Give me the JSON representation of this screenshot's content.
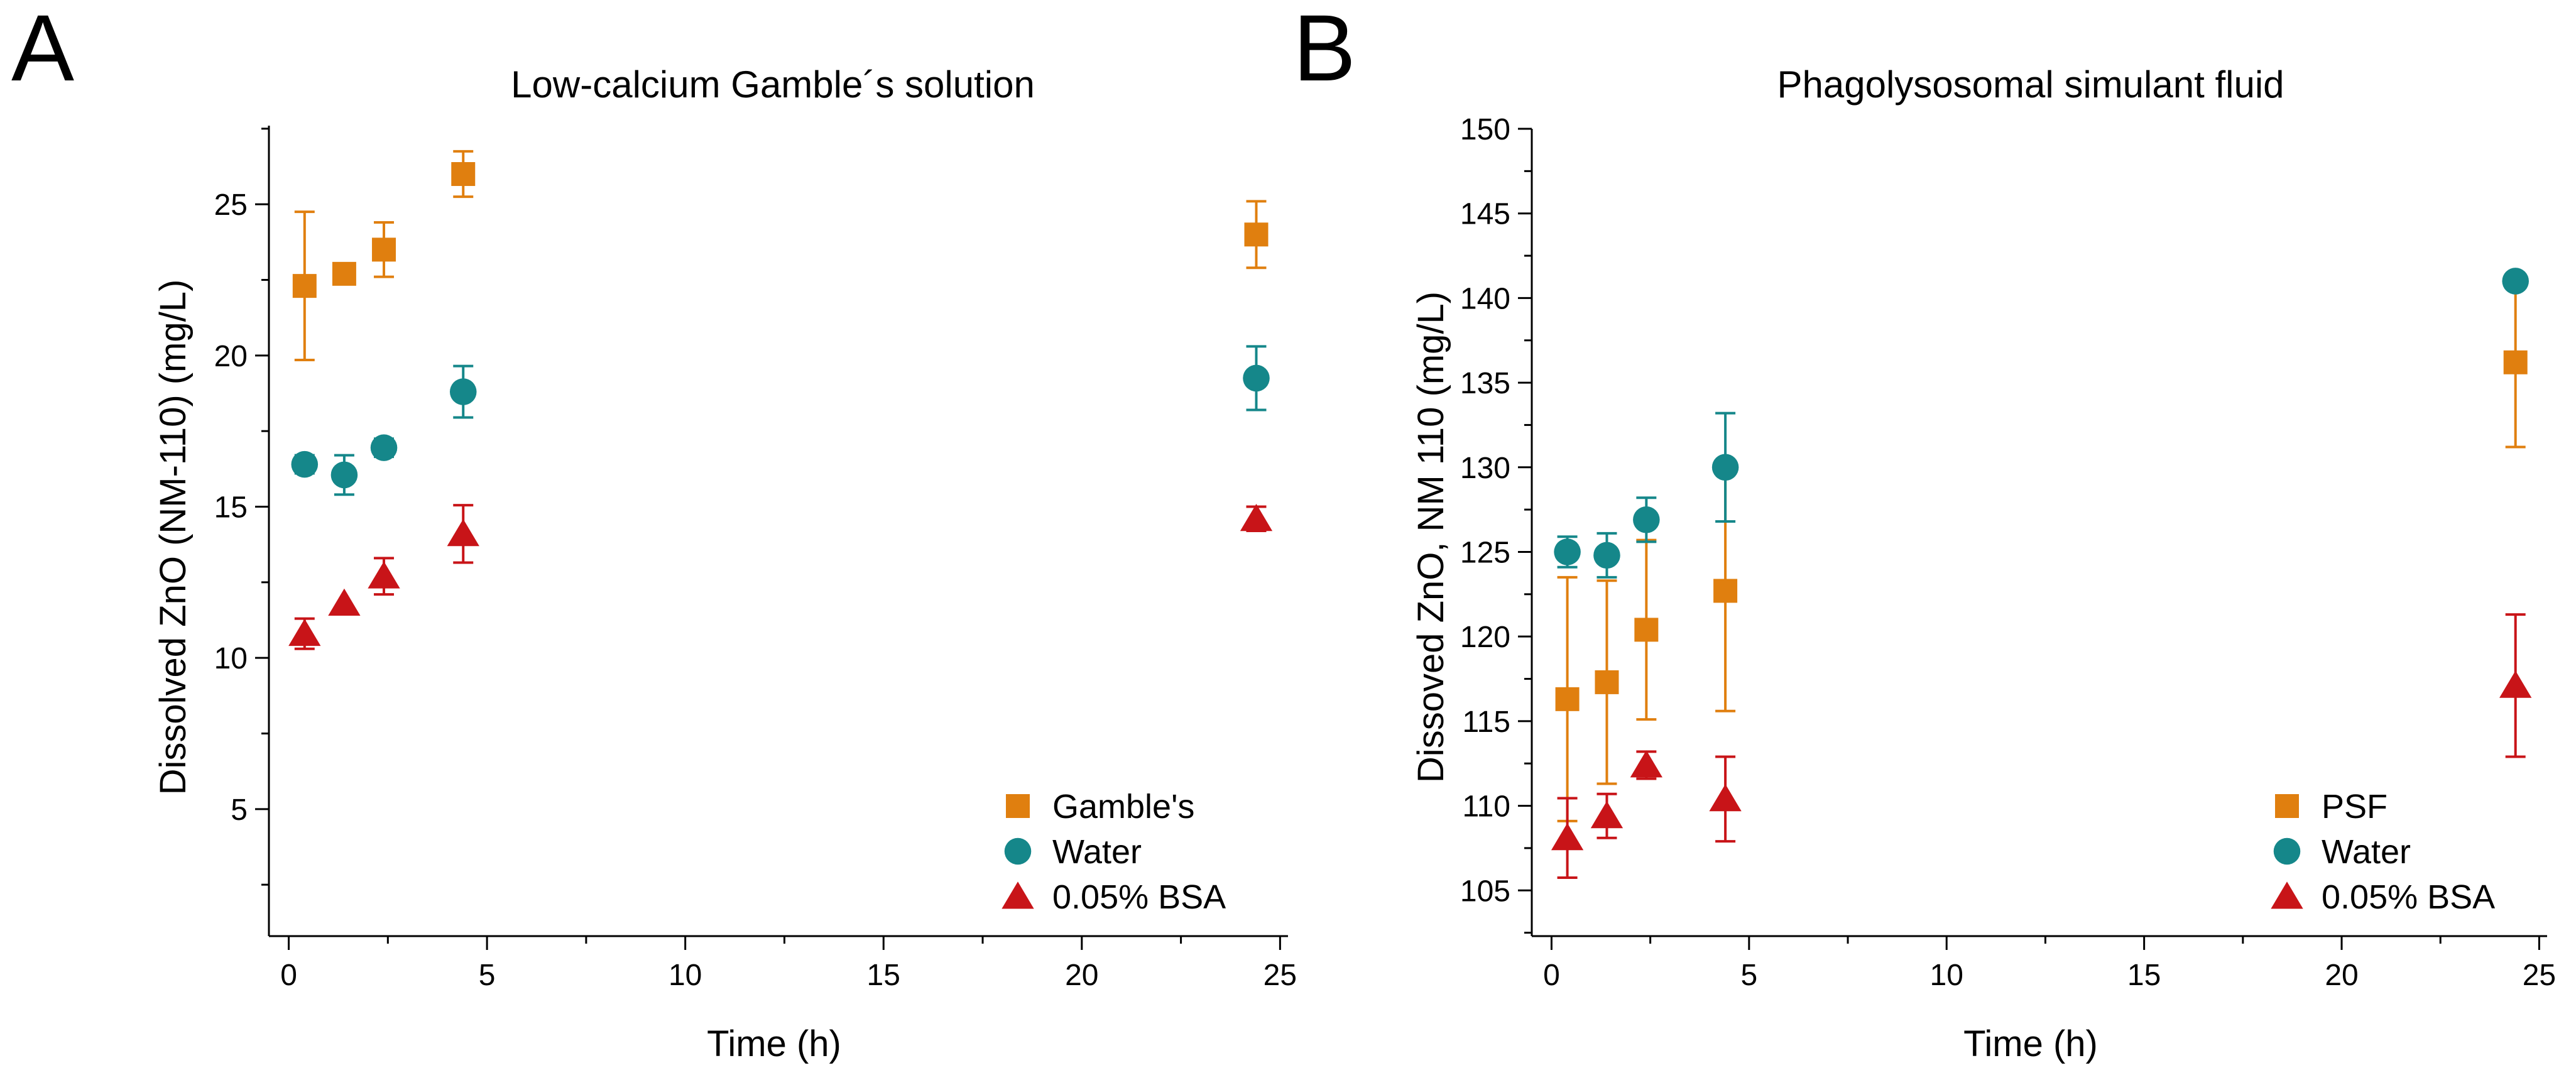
{
  "chart_data": [
    {
      "type": "scatter",
      "panel_letter": "A",
      "title": "Low-calcium Gamble´s solution",
      "xlabel": "Time (h)",
      "ylabel": "Dissolved ZnO (NM-110) (mg/L)",
      "xlim": [
        -0.5,
        25.2
      ],
      "ylim": [
        0.8,
        27.6
      ],
      "xticks": [
        0,
        5,
        10,
        15,
        20,
        25
      ],
      "xtick_labels": [
        "0",
        "5",
        "10",
        "15",
        "20",
        "25"
      ],
      "yticks": [
        5,
        10,
        15,
        20,
        25
      ],
      "ytick_labels": [
        "5",
        "10",
        "15",
        "20",
        "25"
      ],
      "legend_position": "bottom-right",
      "series": [
        {
          "name": "Gamble's",
          "marker": "square",
          "color": "#E07F0F",
          "points": [
            {
              "x": 0.4,
              "y": 22.3,
              "err": 2.45
            },
            {
              "x": 1.4,
              "y": 22.7,
              "err": 0.0
            },
            {
              "x": 2.4,
              "y": 23.5,
              "err": 0.9
            },
            {
              "x": 4.4,
              "y": 26.0,
              "err": 0.75
            },
            {
              "x": 24.4,
              "y": 24.0,
              "err": 1.1
            }
          ]
        },
        {
          "name": "Water",
          "marker": "circle",
          "color": "#15878A",
          "points": [
            {
              "x": 0.4,
              "y": 16.4,
              "err": 0.3
            },
            {
              "x": 1.4,
              "y": 16.05,
              "err": 0.65
            },
            {
              "x": 2.4,
              "y": 16.95,
              "err": 0.3
            },
            {
              "x": 4.4,
              "y": 18.8,
              "err": 0.85
            },
            {
              "x": 24.4,
              "y": 19.25,
              "err": 1.05
            }
          ]
        },
        {
          "name": "0.05% BSA",
          "marker": "triangle",
          "color": "#C81418",
          "points": [
            {
              "x": 0.4,
              "y": 10.8,
              "err": 0.5
            },
            {
              "x": 1.4,
              "y": 11.8,
              "err": 0.0
            },
            {
              "x": 2.4,
              "y": 12.7,
              "err": 0.6
            },
            {
              "x": 4.4,
              "y": 14.1,
              "err": 0.95
            },
            {
              "x": 24.4,
              "y": 14.6,
              "err": 0.4
            }
          ]
        }
      ]
    },
    {
      "type": "scatter",
      "panel_letter": "B",
      "title": "Phagolysosomal simulant fluid",
      "xlabel": "Time (h)",
      "ylabel": "Dissoved ZnO, NM 110 (mg/L)",
      "xlim": [
        -0.5,
        25.2
      ],
      "ylim": [
        102.3,
        150.0
      ],
      "xticks": [
        0,
        5,
        10,
        15,
        20,
        25
      ],
      "xtick_labels": [
        "0",
        "5",
        "10",
        "15",
        "20",
        "25"
      ],
      "yticks": [
        105,
        110,
        115,
        120,
        125,
        130,
        135,
        140,
        145,
        150
      ],
      "ytick_labels": [
        "105",
        "110",
        "115",
        "120",
        "125",
        "130",
        "135",
        "140",
        "145",
        "150"
      ],
      "legend_position": "bottom-right",
      "series": [
        {
          "name": "PSF",
          "marker": "square",
          "color": "#E07F0F",
          "points": [
            {
              "x": 0.4,
              "y": 116.3,
              "err": 7.2
            },
            {
              "x": 1.4,
              "y": 117.3,
              "err": 6.0
            },
            {
              "x": 2.4,
              "y": 120.4,
              "err": 5.3
            },
            {
              "x": 4.4,
              "y": 122.7,
              "err": 7.1
            },
            {
              "x": 24.4,
              "y": 136.2,
              "err": 5.0
            }
          ]
        },
        {
          "name": "Water",
          "marker": "circle",
          "color": "#15878A",
          "points": [
            {
              "x": 0.4,
              "y": 125.0,
              "err": 0.9
            },
            {
              "x": 1.4,
              "y": 124.8,
              "err": 1.3
            },
            {
              "x": 2.4,
              "y": 126.9,
              "err": 1.3
            },
            {
              "x": 4.4,
              "y": 130.0,
              "err": 3.2
            },
            {
              "x": 24.4,
              "y": 141.0,
              "err": 0.0
            }
          ]
        },
        {
          "name": "0.05% BSA",
          "marker": "triangle",
          "color": "#C81418",
          "points": [
            {
              "x": 0.4,
              "y": 108.1,
              "err": 2.35
            },
            {
              "x": 1.4,
              "y": 109.4,
              "err": 1.3
            },
            {
              "x": 2.4,
              "y": 112.4,
              "err": 0.8
            },
            {
              "x": 4.4,
              "y": 110.4,
              "err": 2.5
            },
            {
              "x": 24.4,
              "y": 117.1,
              "err": 4.2
            }
          ]
        }
      ]
    }
  ]
}
